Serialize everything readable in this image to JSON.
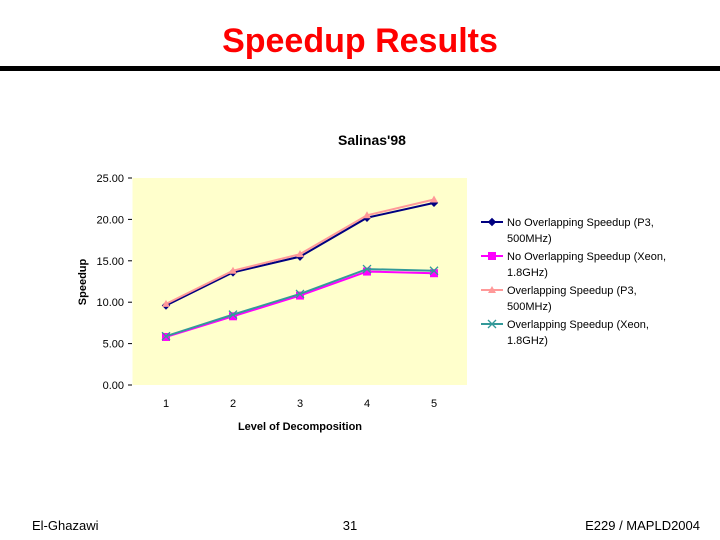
{
  "slide": {
    "title": "Speedup Results",
    "footer_left": "El-Ghazawi",
    "footer_center": "31",
    "footer_right": "E229 / MAPLD2004"
  },
  "chart_data": {
    "type": "line",
    "title": "Salinas'98",
    "xlabel": "Level of Decomposition",
    "ylabel": "Speedup",
    "categories": [
      "1",
      "2",
      "3",
      "4",
      "5"
    ],
    "ylim": [
      0,
      25
    ],
    "yticks": [
      "0.00",
      "5.00",
      "10.00",
      "15.00",
      "20.00",
      "25.00"
    ],
    "plot_background": "#ffffcc",
    "grid": false,
    "legend_position": "right",
    "series": [
      {
        "name": "No Overlapping Speedup (P3, 500MHz)",
        "values": [
          9.6,
          13.6,
          15.5,
          20.2,
          22.0
        ],
        "color": "#000080",
        "marker": "diamond"
      },
      {
        "name": "No Overlapping Speedup (Xeon, 1.8GHz)",
        "values": [
          5.8,
          8.3,
          10.8,
          13.7,
          13.5
        ],
        "color": "#ff00ff",
        "marker": "square"
      },
      {
        "name": "Overlapping Speedup (P3, 500MHz)",
        "values": [
          9.8,
          13.8,
          15.8,
          20.5,
          22.4
        ],
        "color": "#ff9999",
        "marker": "triangle"
      },
      {
        "name": "Overlapping Speedup (Xeon, 1.8GHz)",
        "values": [
          5.9,
          8.5,
          11.0,
          14.0,
          13.8
        ],
        "color": "#339999",
        "marker": "x"
      }
    ],
    "legend_lines": [
      [
        "No Overlapping Speedup (P3,",
        "500MHz)"
      ],
      [
        "No Overlapping Speedup (Xeon,",
        "1.8GHz)"
      ],
      [
        "Overlapping Speedup (P3,",
        "500MHz)"
      ],
      [
        "Overlapping Speedup (Xeon,",
        "1.8GHz)"
      ]
    ]
  }
}
